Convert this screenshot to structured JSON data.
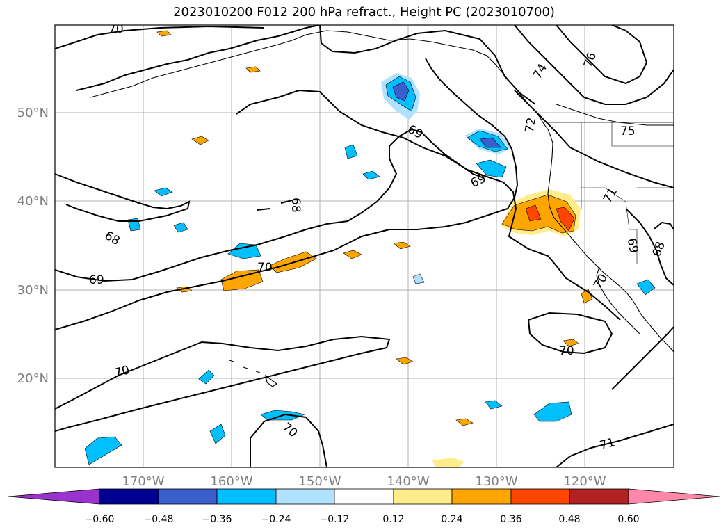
{
  "title": "2023010200 F012 200 hPa refract., Height PC (2023010700)",
  "lon_ticks": [
    "170°W",
    "160°W",
    "150°W",
    "140°W",
    "130°W",
    "120°W"
  ],
  "lat_ticks": [
    "50°N",
    "40°N",
    "30°N",
    "20°N"
  ],
  "colorbar": {
    "levels": [
      "−0.60",
      "−0.48",
      "−0.36",
      "−0.24",
      "−0.12",
      "0.12",
      "0.24",
      "0.36",
      "0.48",
      "0.60"
    ],
    "colors": [
      "#9933cc",
      "#000090",
      "#3a5fcd",
      "#00bfff",
      "#b0e2ff",
      "#ffffff",
      "#ffec8b",
      "#ffa500",
      "#ff4500",
      "#b22222",
      "#ff88aa"
    ]
  },
  "contour_labels": [
    "70",
    "76",
    "74",
    "72",
    "75",
    "69",
    "69",
    "68",
    "68",
    "69",
    "70",
    "71",
    "69",
    "68",
    "70",
    "70",
    "70",
    "71",
    "70"
  ]
}
